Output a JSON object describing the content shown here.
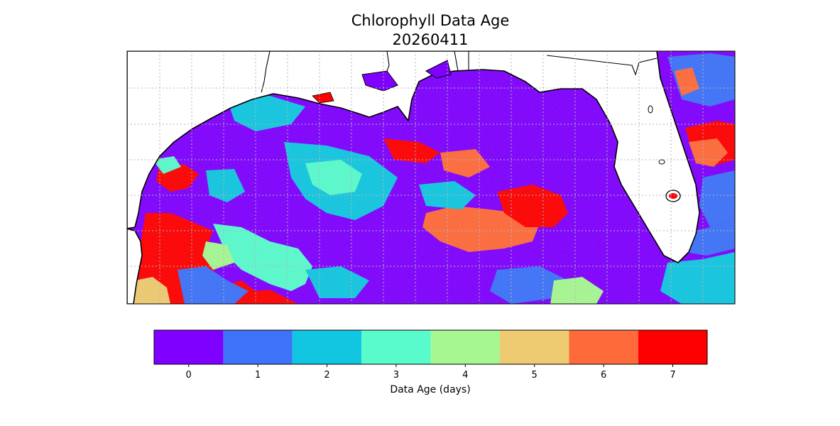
{
  "title": {
    "line1": "Chlorophyll Data Age",
    "line2": "20260411"
  },
  "colorbar": {
    "label": "Data Age (days)",
    "ticks": [
      "0",
      "1",
      "2",
      "3",
      "4",
      "5",
      "6",
      "7"
    ],
    "colors": [
      "#7f00ff",
      "#3d72f9",
      "#11c6e0",
      "#58fbcc",
      "#a6f792",
      "#eeca70",
      "#ff6a3a",
      "#ff0000"
    ]
  },
  "map": {
    "land_color": "#ffffff",
    "coastline_color": "#000000",
    "gridlines": true,
    "gridline_style": "dotted gray"
  }
}
